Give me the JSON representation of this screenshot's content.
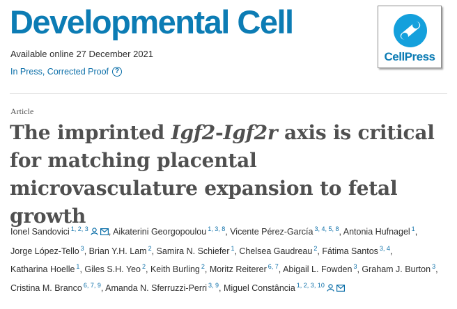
{
  "journal": {
    "title": "Developmental Cell",
    "publisher_logo": "CellPress"
  },
  "pub_date": "Available online 27 December 2021",
  "status": {
    "label": "In Press, Corrected Proof",
    "help_icon": "question-circle-icon"
  },
  "article": {
    "type": "Article",
    "title_parts": [
      "The imprinted ",
      "Igf2",
      "-",
      "Igf2r",
      " axis is critical for matching placental microvasculature expansion to fetal growth"
    ]
  },
  "authors": [
    {
      "name": "Ionel Sandovici",
      "sup": "1, 2, 3",
      "icons": true
    },
    {
      "name": "Aikaterini Georgopoulou",
      "sup": "1, 3, 8"
    },
    {
      "name": "Vicente Pérez-García",
      "sup": "3, 4, 5, 8"
    },
    {
      "name": "Antonia Hufnagel",
      "sup": "1"
    },
    {
      "name": "Jorge López-Tello",
      "sup": "3"
    },
    {
      "name": "Brian Y.H. Lam",
      "sup": "2"
    },
    {
      "name": "Samira N. Schiefer",
      "sup": "1"
    },
    {
      "name": "Chelsea Gaudreau",
      "sup": "2"
    },
    {
      "name": "Fátima Santos",
      "sup": "3, 4"
    },
    {
      "name": "Katharina Hoelle",
      "sup": "1"
    },
    {
      "name": "Giles S.H. Yeo",
      "sup": "2"
    },
    {
      "name": "Keith Burling",
      "sup": "2"
    },
    {
      "name": "Moritz Reiterer",
      "sup": "6, 7"
    },
    {
      "name": "Abigail L. Fowden",
      "sup": "3"
    },
    {
      "name": "Graham J. Burton",
      "sup": "3"
    },
    {
      "name": "Cristina M. Branco",
      "sup": "6, 7, 9"
    },
    {
      "name": "Amanda N. Sferruzzi-Perri",
      "sup": "3, 9"
    },
    {
      "name": "Miguel Constância",
      "sup": "1, 2, 3, 10",
      "icons": true
    }
  ]
}
